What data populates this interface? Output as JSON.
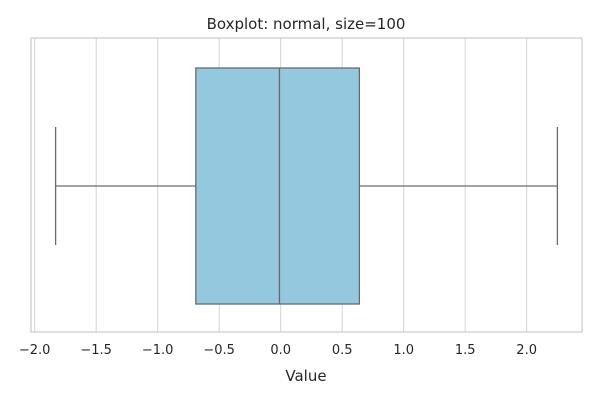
{
  "chart_data": {
    "type": "boxplot",
    "title": "Boxplot: normal, size=100",
    "xlabel": "Value",
    "ylabel": "",
    "orientation": "horizontal",
    "xlim": [
      -2.03,
      2.45
    ],
    "xticks": [
      -2.0,
      -1.5,
      -1.0,
      -0.5,
      0.0,
      0.5,
      1.0,
      1.5,
      2.0
    ],
    "xtick_labels": [
      "−2.0",
      "−1.5",
      "−1.0",
      "−0.5",
      "0.0",
      "0.5",
      "1.0",
      "1.5",
      "2.0"
    ],
    "grid": "vertical",
    "box": {
      "whisker_low": -1.83,
      "q1": -0.69,
      "median": -0.01,
      "q3": 0.64,
      "whisker_high": 2.25
    },
    "colors": {
      "box_fill": "#93c8df",
      "line": "#6a6a6a",
      "grid": "#d3d3d3",
      "frame": "#cccccc",
      "text": "#262626"
    }
  }
}
